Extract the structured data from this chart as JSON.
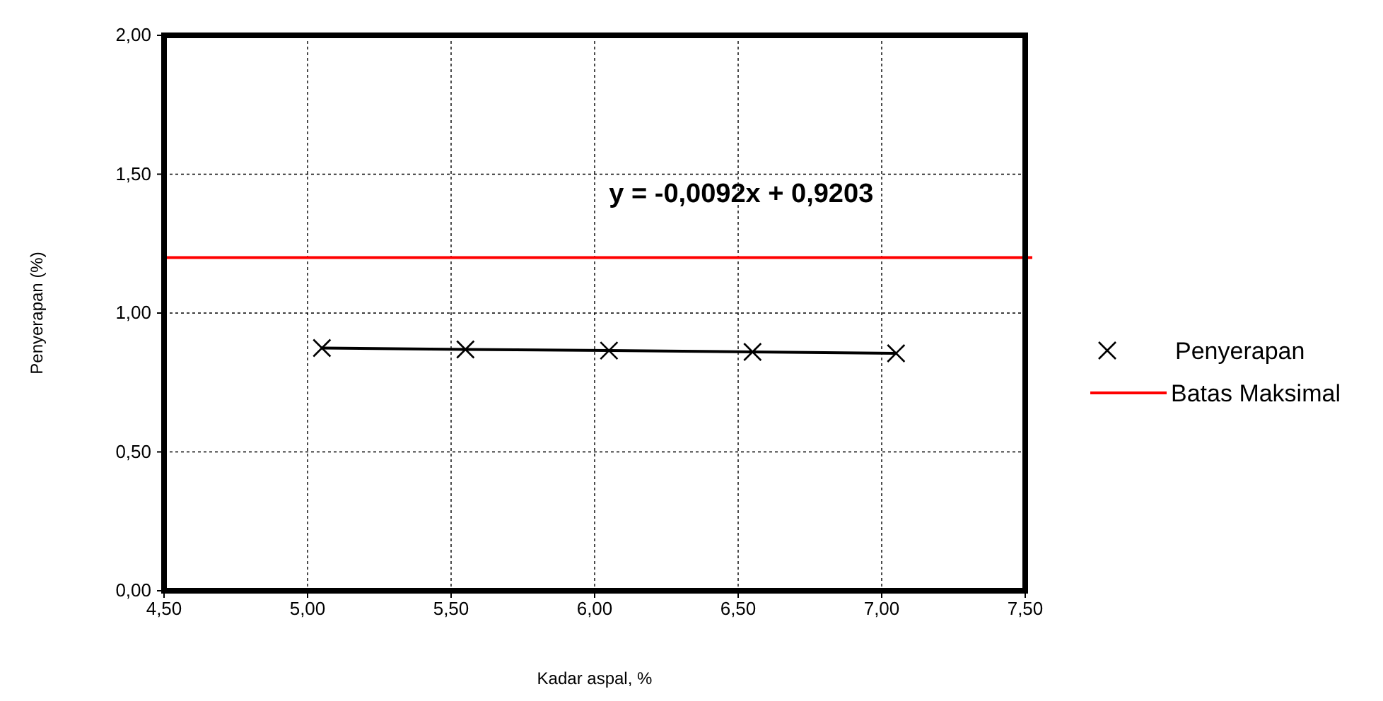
{
  "chart_data": {
    "type": "line",
    "xlabel": "Kadar aspal, %",
    "ylabel": "Penyerapan (%)",
    "x": [
      5.05,
      5.55,
      6.05,
      6.55,
      7.05
    ],
    "series": [
      {
        "name": "Penyerapan",
        "color": "#000000",
        "values": [
          0.874,
          0.869,
          0.865,
          0.86,
          0.855
        ]
      }
    ],
    "xlim": [
      4.5,
      7.5
    ],
    "ylim": [
      0,
      2
    ],
    "xticks": [
      {
        "value": 4.5,
        "label": "4,50"
      },
      {
        "value": 5,
        "label": "5,00"
      },
      {
        "value": 5.5,
        "label": "5,50"
      },
      {
        "value": 6,
        "label": "6,00"
      },
      {
        "value": 6.5,
        "label": "6,50"
      },
      {
        "value": 7,
        "label": "7,00"
      },
      {
        "value": 7.5,
        "label": "7,50"
      }
    ],
    "yticks": [
      {
        "value": 0,
        "label": "0,00"
      },
      {
        "value": 0.5,
        "label": "0,50"
      },
      {
        "value": 1,
        "label": "1,00"
      },
      {
        "value": 1.5,
        "label": "1,50"
      },
      {
        "value": 2,
        "label": "2,00"
      }
    ],
    "ref_lines": [
      {
        "axis": "y",
        "value": 1.2,
        "label": "Batas Maksimal",
        "color": "#ff0000"
      }
    ],
    "annotations": [
      "y = -0,0092x + 0,9203"
    ],
    "grid": true,
    "legend": "right",
    "marker": "cross",
    "line_style": "solid"
  }
}
